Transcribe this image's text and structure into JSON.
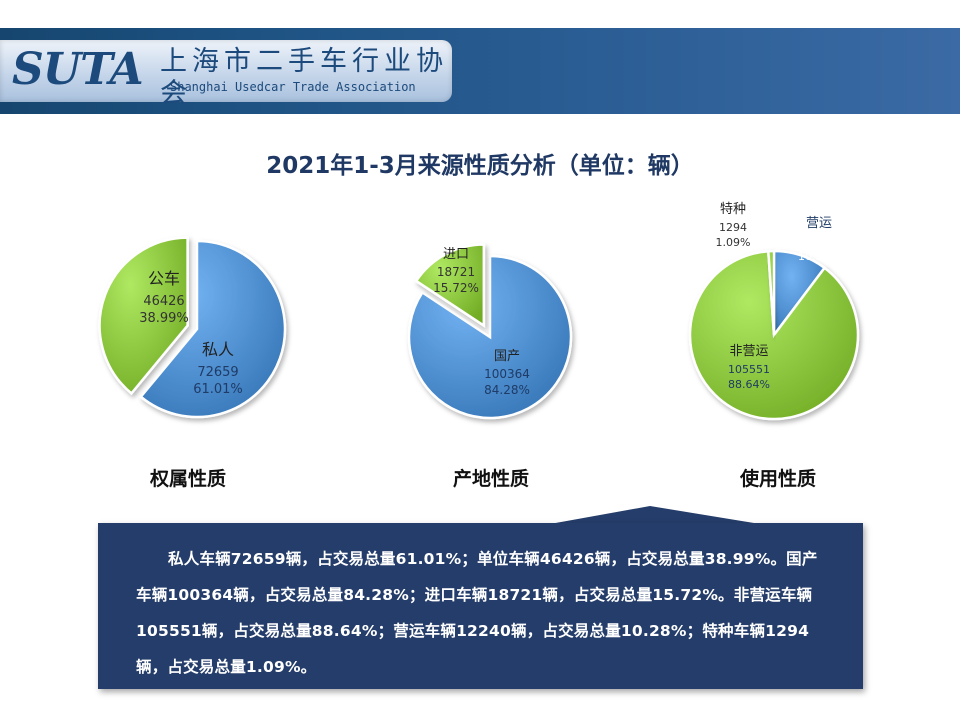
{
  "header": {
    "logo_abbr": "SUTA",
    "logo_cn": "上海市二手车行业协会",
    "logo_en": "Shanghai Usedcar Trade Association",
    "bar_color": "#1e5384"
  },
  "title": "2021年1-3月来源性质分析（单位：辆）",
  "chart_data": [
    {
      "type": "pie",
      "title": "权属性质",
      "slices": [
        {
          "name": "私人",
          "value": 72659,
          "percent": "61.01%",
          "color": "#4f8fd0",
          "exploded": false
        },
        {
          "name": "公车",
          "value": 46426,
          "percent": "38.99%",
          "color": "#8cc63f",
          "exploded": true
        }
      ]
    },
    {
      "type": "pie",
      "title": "产地性质",
      "slices": [
        {
          "name": "国产",
          "value": 100364,
          "percent": "84.28%",
          "color": "#4f8fd0",
          "exploded": false
        },
        {
          "name": "进口",
          "value": 18721,
          "percent": "15.72%",
          "color": "#8cc63f",
          "exploded": true
        }
      ]
    },
    {
      "type": "pie",
      "title": "使用性质",
      "slices": [
        {
          "name": "营运",
          "value": 12240,
          "percent": "10.28%",
          "color": "#4f8fd0",
          "exploded": false
        },
        {
          "name": "非营运",
          "value": 105551,
          "percent": "88.64%",
          "color": "#8cc63f",
          "exploded": false
        },
        {
          "name": "特种",
          "value": 1294,
          "percent": "1.09%",
          "color": "#8cc63f",
          "exploded": false
        }
      ]
    }
  ],
  "summary": "私人车辆72659辆，占交易总量61.01%；单位车辆46426辆，占交易总量38.99%。国产车辆100364辆，占交易总量84.28%；进口车辆18721辆，占交易总量15.72%。非营运车辆105551辆，占交易总量88.64%；营运车辆12240辆，占交易总量10.28%；特种车辆1294辆，占交易总量1.09%。"
}
